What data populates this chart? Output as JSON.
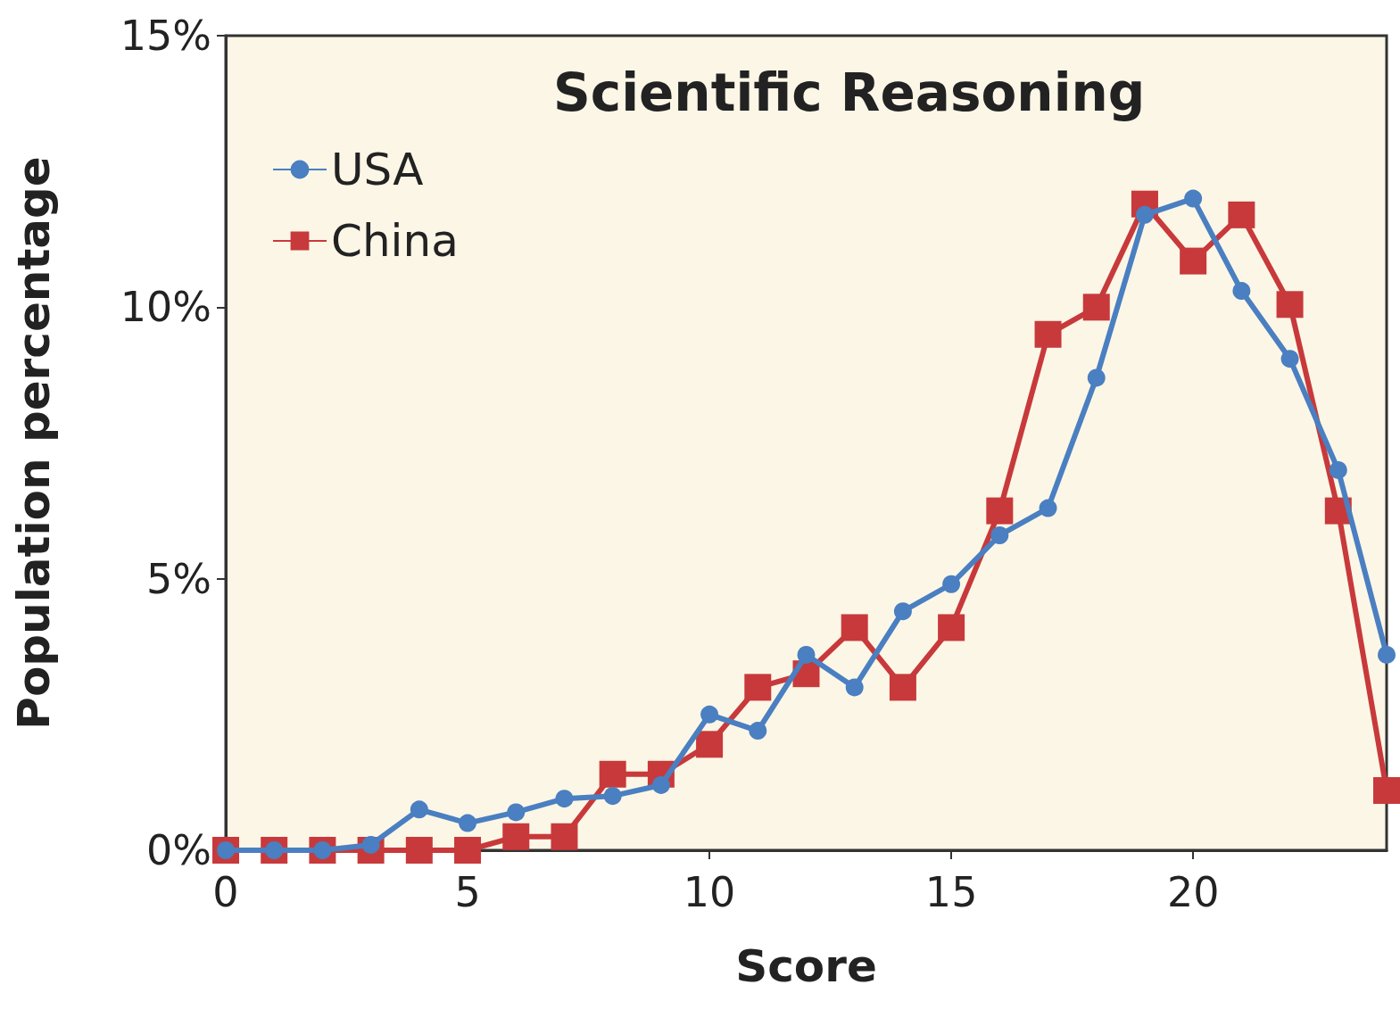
{
  "chart_data": {
    "type": "line",
    "title": "Scientific Reasoning",
    "xlabel": "Score",
    "ylabel": "Population percentage",
    "x": [
      0,
      1,
      2,
      3,
      4,
      5,
      6,
      7,
      8,
      9,
      10,
      11,
      12,
      13,
      14,
      15,
      16,
      17,
      18,
      19,
      20,
      21,
      22,
      23,
      24
    ],
    "series": [
      {
        "name": "USA",
        "color": "#4a7fc1",
        "marker": "circle",
        "values": [
          0,
          0,
          0,
          0.1,
          0.75,
          0.5,
          0.7,
          0.95,
          1.0,
          1.2,
          2.5,
          2.2,
          3.6,
          3.0,
          4.4,
          4.9,
          5.8,
          6.3,
          8.7,
          11.7,
          12.0,
          10.3,
          9.05,
          7.0,
          3.6
        ]
      },
      {
        "name": "China",
        "color": "#c8393b",
        "marker": "square",
        "values": [
          0,
          0,
          0,
          0,
          0,
          0,
          0.25,
          0.25,
          1.4,
          1.4,
          1.95,
          3.0,
          3.25,
          4.1,
          3.0,
          4.1,
          6.25,
          9.5,
          10.0,
          11.9,
          10.85,
          11.7,
          10.05,
          6.25,
          1.1
        ]
      }
    ],
    "xlim": [
      0,
      24
    ],
    "xticks": [
      0,
      5,
      10,
      15,
      20
    ],
    "ylim": [
      0,
      15
    ],
    "yticks": [
      {
        "value": 0,
        "label": "0%"
      },
      {
        "value": 5,
        "label": "5%"
      },
      {
        "value": 10,
        "label": "10%"
      },
      {
        "value": 15,
        "label": "15%"
      }
    ],
    "legend": "top left",
    "grid": false
  }
}
